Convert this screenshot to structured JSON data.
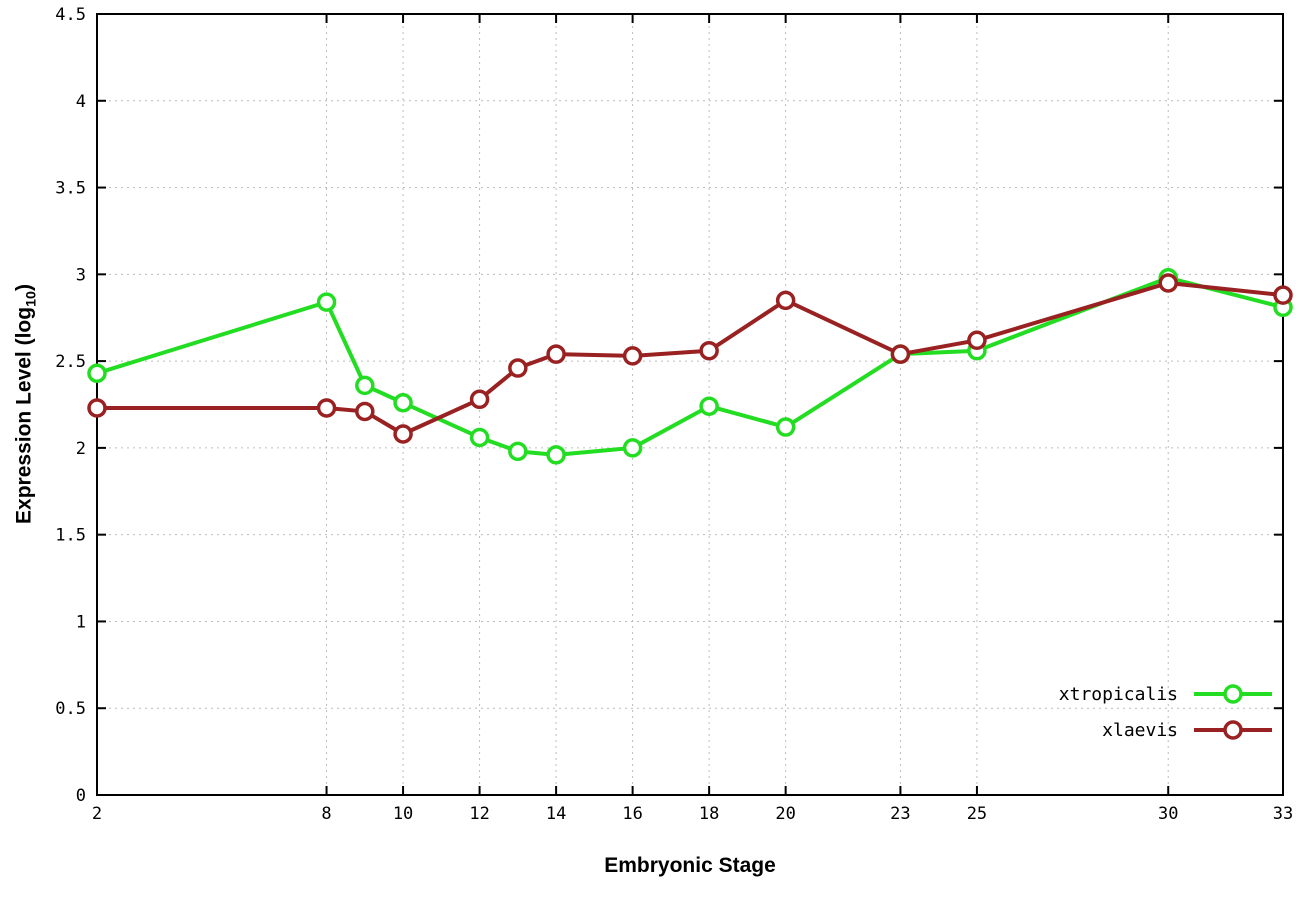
{
  "chart_data": {
    "type": "line",
    "title": "",
    "xlabel": "Embryonic Stage",
    "ylabel": {
      "prefix": "Expression Level (log",
      "sub": "10",
      "suffix": ")"
    },
    "xlim": [
      2,
      33
    ],
    "ylim": [
      0,
      4.5
    ],
    "grid": "dotted",
    "legend_position": "bottom-right",
    "marker": "open-circle",
    "x_ticks": [
      {
        "v": 2,
        "label": "2"
      },
      {
        "v": 8,
        "label": "8"
      },
      {
        "v": 10,
        "label": "10"
      },
      {
        "v": 12,
        "label": "12"
      },
      {
        "v": 14,
        "label": "14"
      },
      {
        "v": 16,
        "label": "16"
      },
      {
        "v": 18,
        "label": "18"
      },
      {
        "v": 20,
        "label": "20"
      },
      {
        "v": 23,
        "label": "23"
      },
      {
        "v": 25,
        "label": "25"
      },
      {
        "v": 30,
        "label": "30"
      },
      {
        "v": 33,
        "label": "33"
      }
    ],
    "y_ticks": [
      {
        "v": 0,
        "label": "0"
      },
      {
        "v": 0.5,
        "label": "0.5"
      },
      {
        "v": 1,
        "label": "1"
      },
      {
        "v": 1.5,
        "label": "1.5"
      },
      {
        "v": 2,
        "label": "2"
      },
      {
        "v": 2.5,
        "label": "2.5"
      },
      {
        "v": 3,
        "label": "3"
      },
      {
        "v": 3.5,
        "label": "3.5"
      },
      {
        "v": 4,
        "label": "4"
      },
      {
        "v": 4.5,
        "label": "4.5"
      }
    ],
    "x": [
      2,
      8,
      9,
      10,
      12,
      13,
      14,
      16,
      18,
      20,
      23,
      25,
      30,
      33
    ],
    "series": [
      {
        "name": "xtropicalis",
        "color": "#22dd22",
        "values": [
          2.43,
          2.84,
          2.36,
          2.26,
          2.06,
          1.98,
          1.96,
          2.0,
          2.24,
          2.12,
          2.54,
          2.56,
          2.98,
          2.81
        ]
      },
      {
        "name": "xlaevis",
        "color": "#992121",
        "values": [
          2.23,
          2.23,
          2.21,
          2.08,
          2.28,
          2.46,
          2.54,
          2.53,
          2.56,
          2.85,
          2.54,
          2.62,
          2.95,
          2.88
        ]
      }
    ]
  }
}
